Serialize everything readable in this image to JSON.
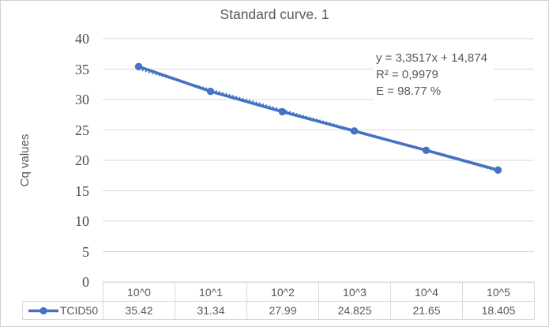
{
  "chart_data": {
    "type": "line",
    "title": "Standard curve. 1",
    "xlabel": "",
    "ylabel": "Cq values",
    "categories": [
      "10^0",
      "10^1",
      "10^2",
      "10^3",
      "10^4",
      "10^5"
    ],
    "series": [
      {
        "name": "TCID50",
        "values": [
          35.42,
          31.34,
          27.99,
          24.825,
          21.65,
          18.405
        ]
      }
    ],
    "ylim": [
      0,
      40
    ],
    "yticks": [
      40,
      35,
      30,
      25,
      20,
      15,
      10,
      5,
      0
    ],
    "grid": true,
    "legend_position": "table-bottom-left",
    "trendline_style": "dotted",
    "annotation": {
      "equation": "y = 3,3517x + 14,874",
      "r_squared": "R² = 0,9979",
      "efficiency": "E = 98.77 %"
    },
    "colors": {
      "series": "#4472C4",
      "gridline": "#d9d9d9",
      "table_border": "#d9d9d9",
      "text": "#595959"
    }
  }
}
